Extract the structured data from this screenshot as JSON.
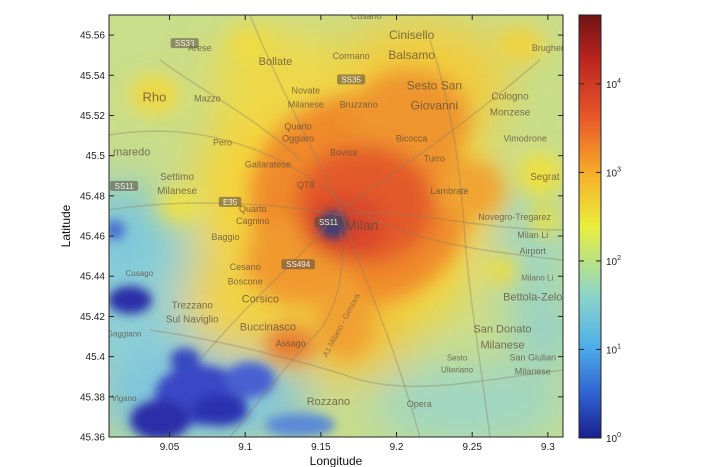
{
  "axes": {
    "xlabel": "Longitude",
    "ylabel": "Latitude",
    "xlim": [
      9.01,
      9.31
    ],
    "ylim": [
      45.36,
      45.57
    ],
    "xticks": [
      {
        "v": 9.05,
        "label": "9.05"
      },
      {
        "v": 9.1,
        "label": "9.1"
      },
      {
        "v": 9.15,
        "label": "9.15"
      },
      {
        "v": 9.2,
        "label": "9.2"
      },
      {
        "v": 9.25,
        "label": "9.25"
      },
      {
        "v": 9.3,
        "label": "9.3"
      }
    ],
    "yticks": [
      {
        "v": 45.36,
        "label": "45.36"
      },
      {
        "v": 45.38,
        "label": "45.38"
      },
      {
        "v": 45.4,
        "label": "45.4"
      },
      {
        "v": 45.42,
        "label": "45.42"
      },
      {
        "v": 45.44,
        "label": "45.44"
      },
      {
        "v": 45.46,
        "label": "45.46"
      },
      {
        "v": 45.48,
        "label": "45.48"
      },
      {
        "v": 45.5,
        "label": "45.5"
      },
      {
        "v": 45.52,
        "label": "45.52"
      },
      {
        "v": 45.54,
        "label": "45.54"
      },
      {
        "v": 45.56,
        "label": "45.56"
      }
    ]
  },
  "colorbar": {
    "scale": "log",
    "range": [
      1,
      60000
    ],
    "ticks": [
      {
        "exp": 0,
        "base": "10",
        "sup": "0"
      },
      {
        "exp": 1,
        "base": "10",
        "sup": "1"
      },
      {
        "exp": 2,
        "base": "10",
        "sup": "2"
      },
      {
        "exp": 3,
        "base": "10",
        "sup": "3"
      },
      {
        "exp": 4,
        "base": "10",
        "sup": "4"
      }
    ],
    "colors": [
      "#1a1f8c",
      "#2f5fd0",
      "#4fb0e8",
      "#8fd6c8",
      "#e8ee3c",
      "#f7b02a",
      "#e8562a",
      "#b8231e",
      "#6e1414"
    ]
  },
  "places": [
    {
      "text": "Cinisello",
      "lon": 9.21,
      "lat": 45.558,
      "size": 12
    },
    {
      "text": "Balsamo",
      "lon": 9.21,
      "lat": 45.548,
      "size": 12
    },
    {
      "text": "Cusano",
      "lon": 9.18,
      "lat": 45.568,
      "size": 9
    },
    {
      "text": "Arese",
      "lon": 9.07,
      "lat": 45.552,
      "size": 9
    },
    {
      "text": "Bollate",
      "lon": 9.12,
      "lat": 45.545,
      "size": 11
    },
    {
      "text": "Cormano",
      "lon": 9.17,
      "lat": 45.548,
      "size": 9
    },
    {
      "text": "Brugher",
      "lon": 9.3,
      "lat": 45.552,
      "size": 9
    },
    {
      "text": "Rho",
      "lon": 9.04,
      "lat": 45.527,
      "size": 13
    },
    {
      "text": "Mazzo",
      "lon": 9.075,
      "lat": 45.527,
      "size": 9
    },
    {
      "text": "Novate",
      "lon": 9.14,
      "lat": 45.531,
      "size": 9
    },
    {
      "text": "Milanese",
      "lon": 9.14,
      "lat": 45.524,
      "size": 9
    },
    {
      "text": "Bruzzano",
      "lon": 9.175,
      "lat": 45.524,
      "size": 9
    },
    {
      "text": "Sesto San",
      "lon": 9.225,
      "lat": 45.533,
      "size": 12
    },
    {
      "text": "Giovanni",
      "lon": 9.225,
      "lat": 45.523,
      "size": 12
    },
    {
      "text": "Cologno",
      "lon": 9.275,
      "lat": 45.528,
      "size": 10
    },
    {
      "text": "Monzese",
      "lon": 9.275,
      "lat": 45.52,
      "size": 10
    },
    {
      "text": "Quarto",
      "lon": 9.135,
      "lat": 45.513,
      "size": 9
    },
    {
      "text": "Oggiaro",
      "lon": 9.135,
      "lat": 45.507,
      "size": 9
    },
    {
      "text": "Bicocca",
      "lon": 9.21,
      "lat": 45.507,
      "size": 9
    },
    {
      "text": "Vimodrone",
      "lon": 9.285,
      "lat": 45.507,
      "size": 9
    },
    {
      "text": "Pero",
      "lon": 9.085,
      "lat": 45.505,
      "size": 9
    },
    {
      "text": "maredo",
      "lon": 9.025,
      "lat": 45.5,
      "size": 11
    },
    {
      "text": "Bovisa",
      "lon": 9.165,
      "lat": 45.5,
      "size": 9
    },
    {
      "text": "Turro",
      "lon": 9.225,
      "lat": 45.497,
      "size": 9
    },
    {
      "text": "Gallaratese",
      "lon": 9.115,
      "lat": 45.494,
      "size": 9
    },
    {
      "text": "Settimo",
      "lon": 9.055,
      "lat": 45.488,
      "size": 10
    },
    {
      "text": "Milanese",
      "lon": 9.055,
      "lat": 45.481,
      "size": 10
    },
    {
      "text": "Segrat",
      "lon": 9.298,
      "lat": 45.488,
      "size": 10
    },
    {
      "text": "QT8",
      "lon": 9.14,
      "lat": 45.484,
      "size": 9
    },
    {
      "text": "Lambrate",
      "lon": 9.235,
      "lat": 45.481,
      "size": 9
    },
    {
      "text": "Quarto",
      "lon": 9.105,
      "lat": 45.472,
      "size": 9
    },
    {
      "text": "Cagnino",
      "lon": 9.105,
      "lat": 45.466,
      "size": 9
    },
    {
      "text": "Milan",
      "lon": 9.177,
      "lat": 45.463,
      "size": 14
    },
    {
      "text": "Novegro-Tregarez",
      "lon": 9.278,
      "lat": 45.468,
      "size": 9
    },
    {
      "text": "Baggio",
      "lon": 9.087,
      "lat": 45.458,
      "size": 9
    },
    {
      "text": "Milan Li",
      "lon": 9.29,
      "lat": 45.459,
      "size": 9
    },
    {
      "text": "Airport",
      "lon": 9.29,
      "lat": 45.451,
      "size": 9
    },
    {
      "text": "Cesano",
      "lon": 9.1,
      "lat": 45.443,
      "size": 9
    },
    {
      "text": "Boscone",
      "lon": 9.1,
      "lat": 45.436,
      "size": 9
    },
    {
      "text": "Cusago",
      "lon": 9.03,
      "lat": 45.44,
      "size": 8
    },
    {
      "text": "Milano Li",
      "lon": 9.293,
      "lat": 45.438,
      "size": 8
    },
    {
      "text": "Corsico",
      "lon": 9.11,
      "lat": 45.427,
      "size": 11
    },
    {
      "text": "Bettola-Zelo",
      "lon": 9.29,
      "lat": 45.428,
      "size": 11
    },
    {
      "text": "Trezzano",
      "lon": 9.065,
      "lat": 45.424,
      "size": 10
    },
    {
      "text": "Sul Naviglio",
      "lon": 9.065,
      "lat": 45.417,
      "size": 10
    },
    {
      "text": "Buccinasco",
      "lon": 9.115,
      "lat": 45.413,
      "size": 11
    },
    {
      "text": "San Donato",
      "lon": 9.27,
      "lat": 45.412,
      "size": 11
    },
    {
      "text": "Milanese",
      "lon": 9.27,
      "lat": 45.404,
      "size": 11
    },
    {
      "text": "Gaggiano",
      "lon": 9.02,
      "lat": 45.41,
      "size": 8
    },
    {
      "text": "Assago",
      "lon": 9.13,
      "lat": 45.405,
      "size": 9
    },
    {
      "text": "Sesto",
      "lon": 9.24,
      "lat": 45.398,
      "size": 8
    },
    {
      "text": "Ulteriano",
      "lon": 9.24,
      "lat": 45.392,
      "size": 8
    },
    {
      "text": "San Giulian",
      "lon": 9.29,
      "lat": 45.398,
      "size": 9
    },
    {
      "text": "Milanese",
      "lon": 9.29,
      "lat": 45.391,
      "size": 9
    },
    {
      "text": "Vigano",
      "lon": 9.02,
      "lat": 45.378,
      "size": 8
    },
    {
      "text": "Rozzano",
      "lon": 9.155,
      "lat": 45.376,
      "size": 11
    },
    {
      "text": "Opera",
      "lon": 9.215,
      "lat": 45.375,
      "size": 9
    }
  ],
  "roads": [
    {
      "text": "SS33",
      "lon": 9.06,
      "lat": 45.555
    },
    {
      "text": "SS35",
      "lon": 9.17,
      "lat": 45.537
    },
    {
      "text": "SS11",
      "lon": 9.02,
      "lat": 45.484
    },
    {
      "text": "E35",
      "lon": 9.09,
      "lat": 45.476
    },
    {
      "text": "SS11",
      "lon": 9.155,
      "lat": 45.466
    },
    {
      "text": "SS494",
      "lon": 9.135,
      "lat": 45.445
    },
    {
      "text": "A1 Milano - Genova",
      "lon": 9.165,
      "lat": 45.415
    }
  ]
}
